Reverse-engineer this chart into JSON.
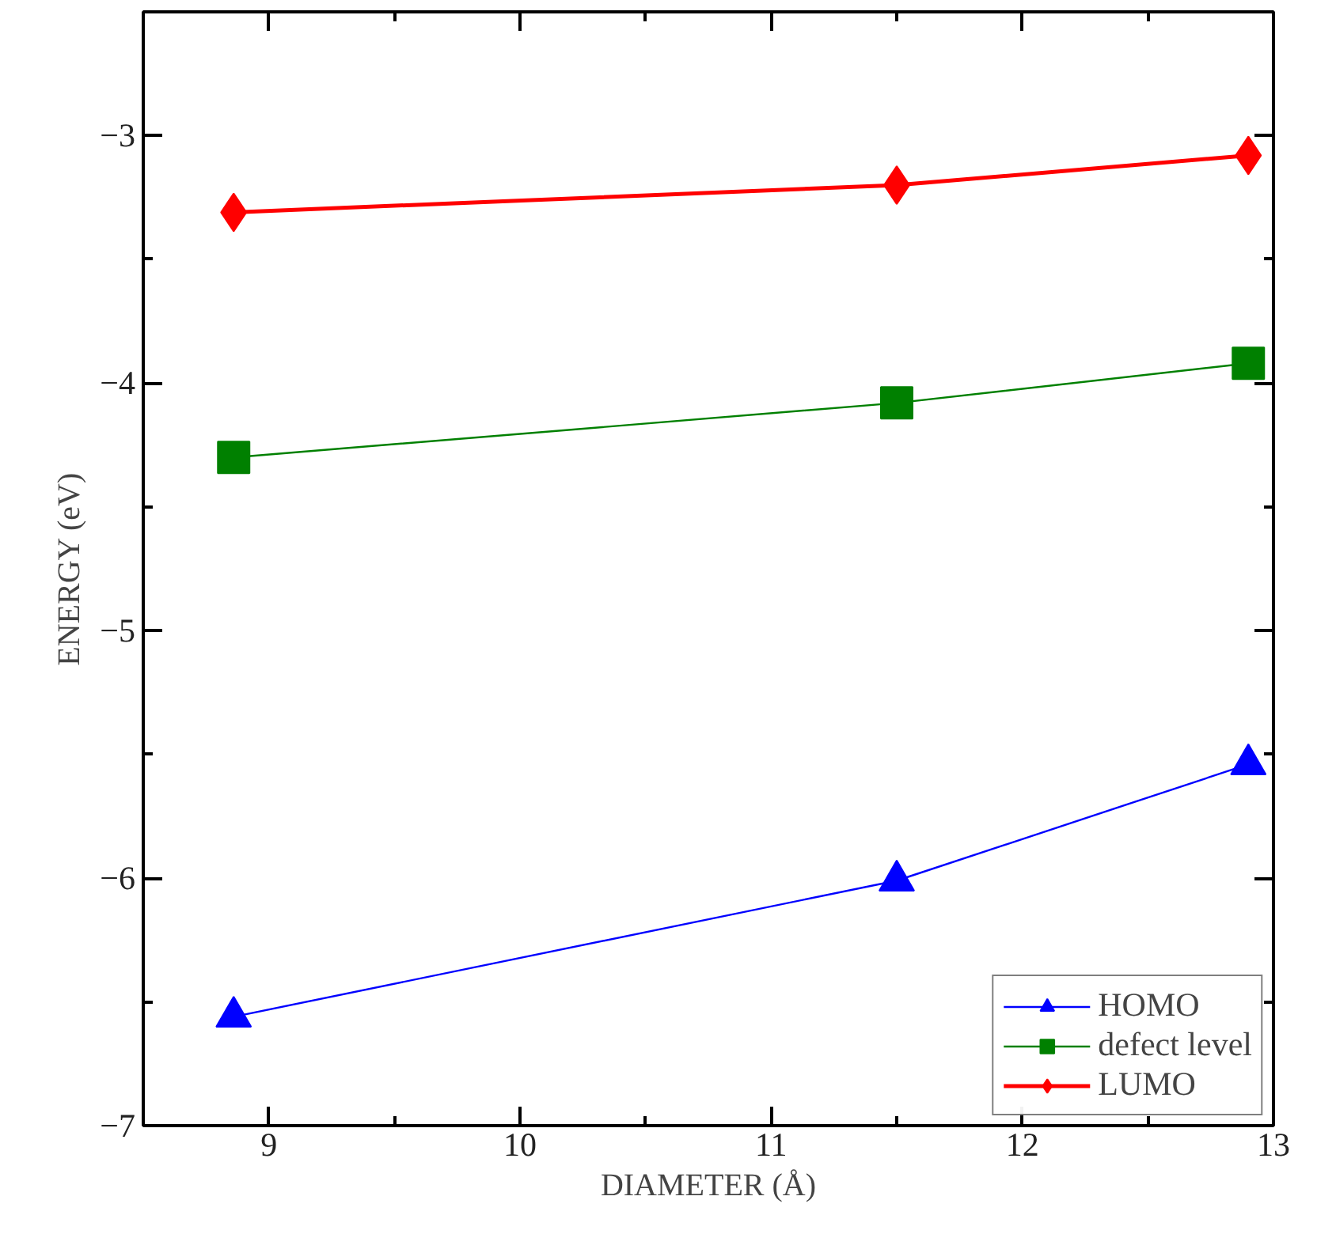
{
  "chart_data": {
    "type": "line",
    "xlabel": "DIAMETER (Å)",
    "ylabel": "ENERGY (eV)",
    "x": [
      8.86,
      11.5,
      12.9
    ],
    "xlim": [
      8.5,
      13
    ],
    "xticks": [
      9,
      10,
      11,
      12,
      13
    ],
    "ylim": [
      -7,
      -2.5
    ],
    "yticks": [
      -7,
      -6,
      -5,
      -4,
      -3
    ],
    "grid": false,
    "legend": "bottom right",
    "line_style": "solid",
    "series": [
      {
        "name": "HOMO",
        "color": "#0000ff",
        "marker": "triangle",
        "values": [
          -6.56,
          -6.01,
          -5.54
        ]
      },
      {
        "name": "defect level",
        "color": "#008000",
        "marker": "square",
        "values": [
          -4.3,
          -4.08,
          -3.92
        ]
      },
      {
        "name": "LUMO",
        "color": "#ff0000",
        "marker": "diamond",
        "values": [
          -3.31,
          -3.2,
          -3.08
        ]
      }
    ]
  }
}
